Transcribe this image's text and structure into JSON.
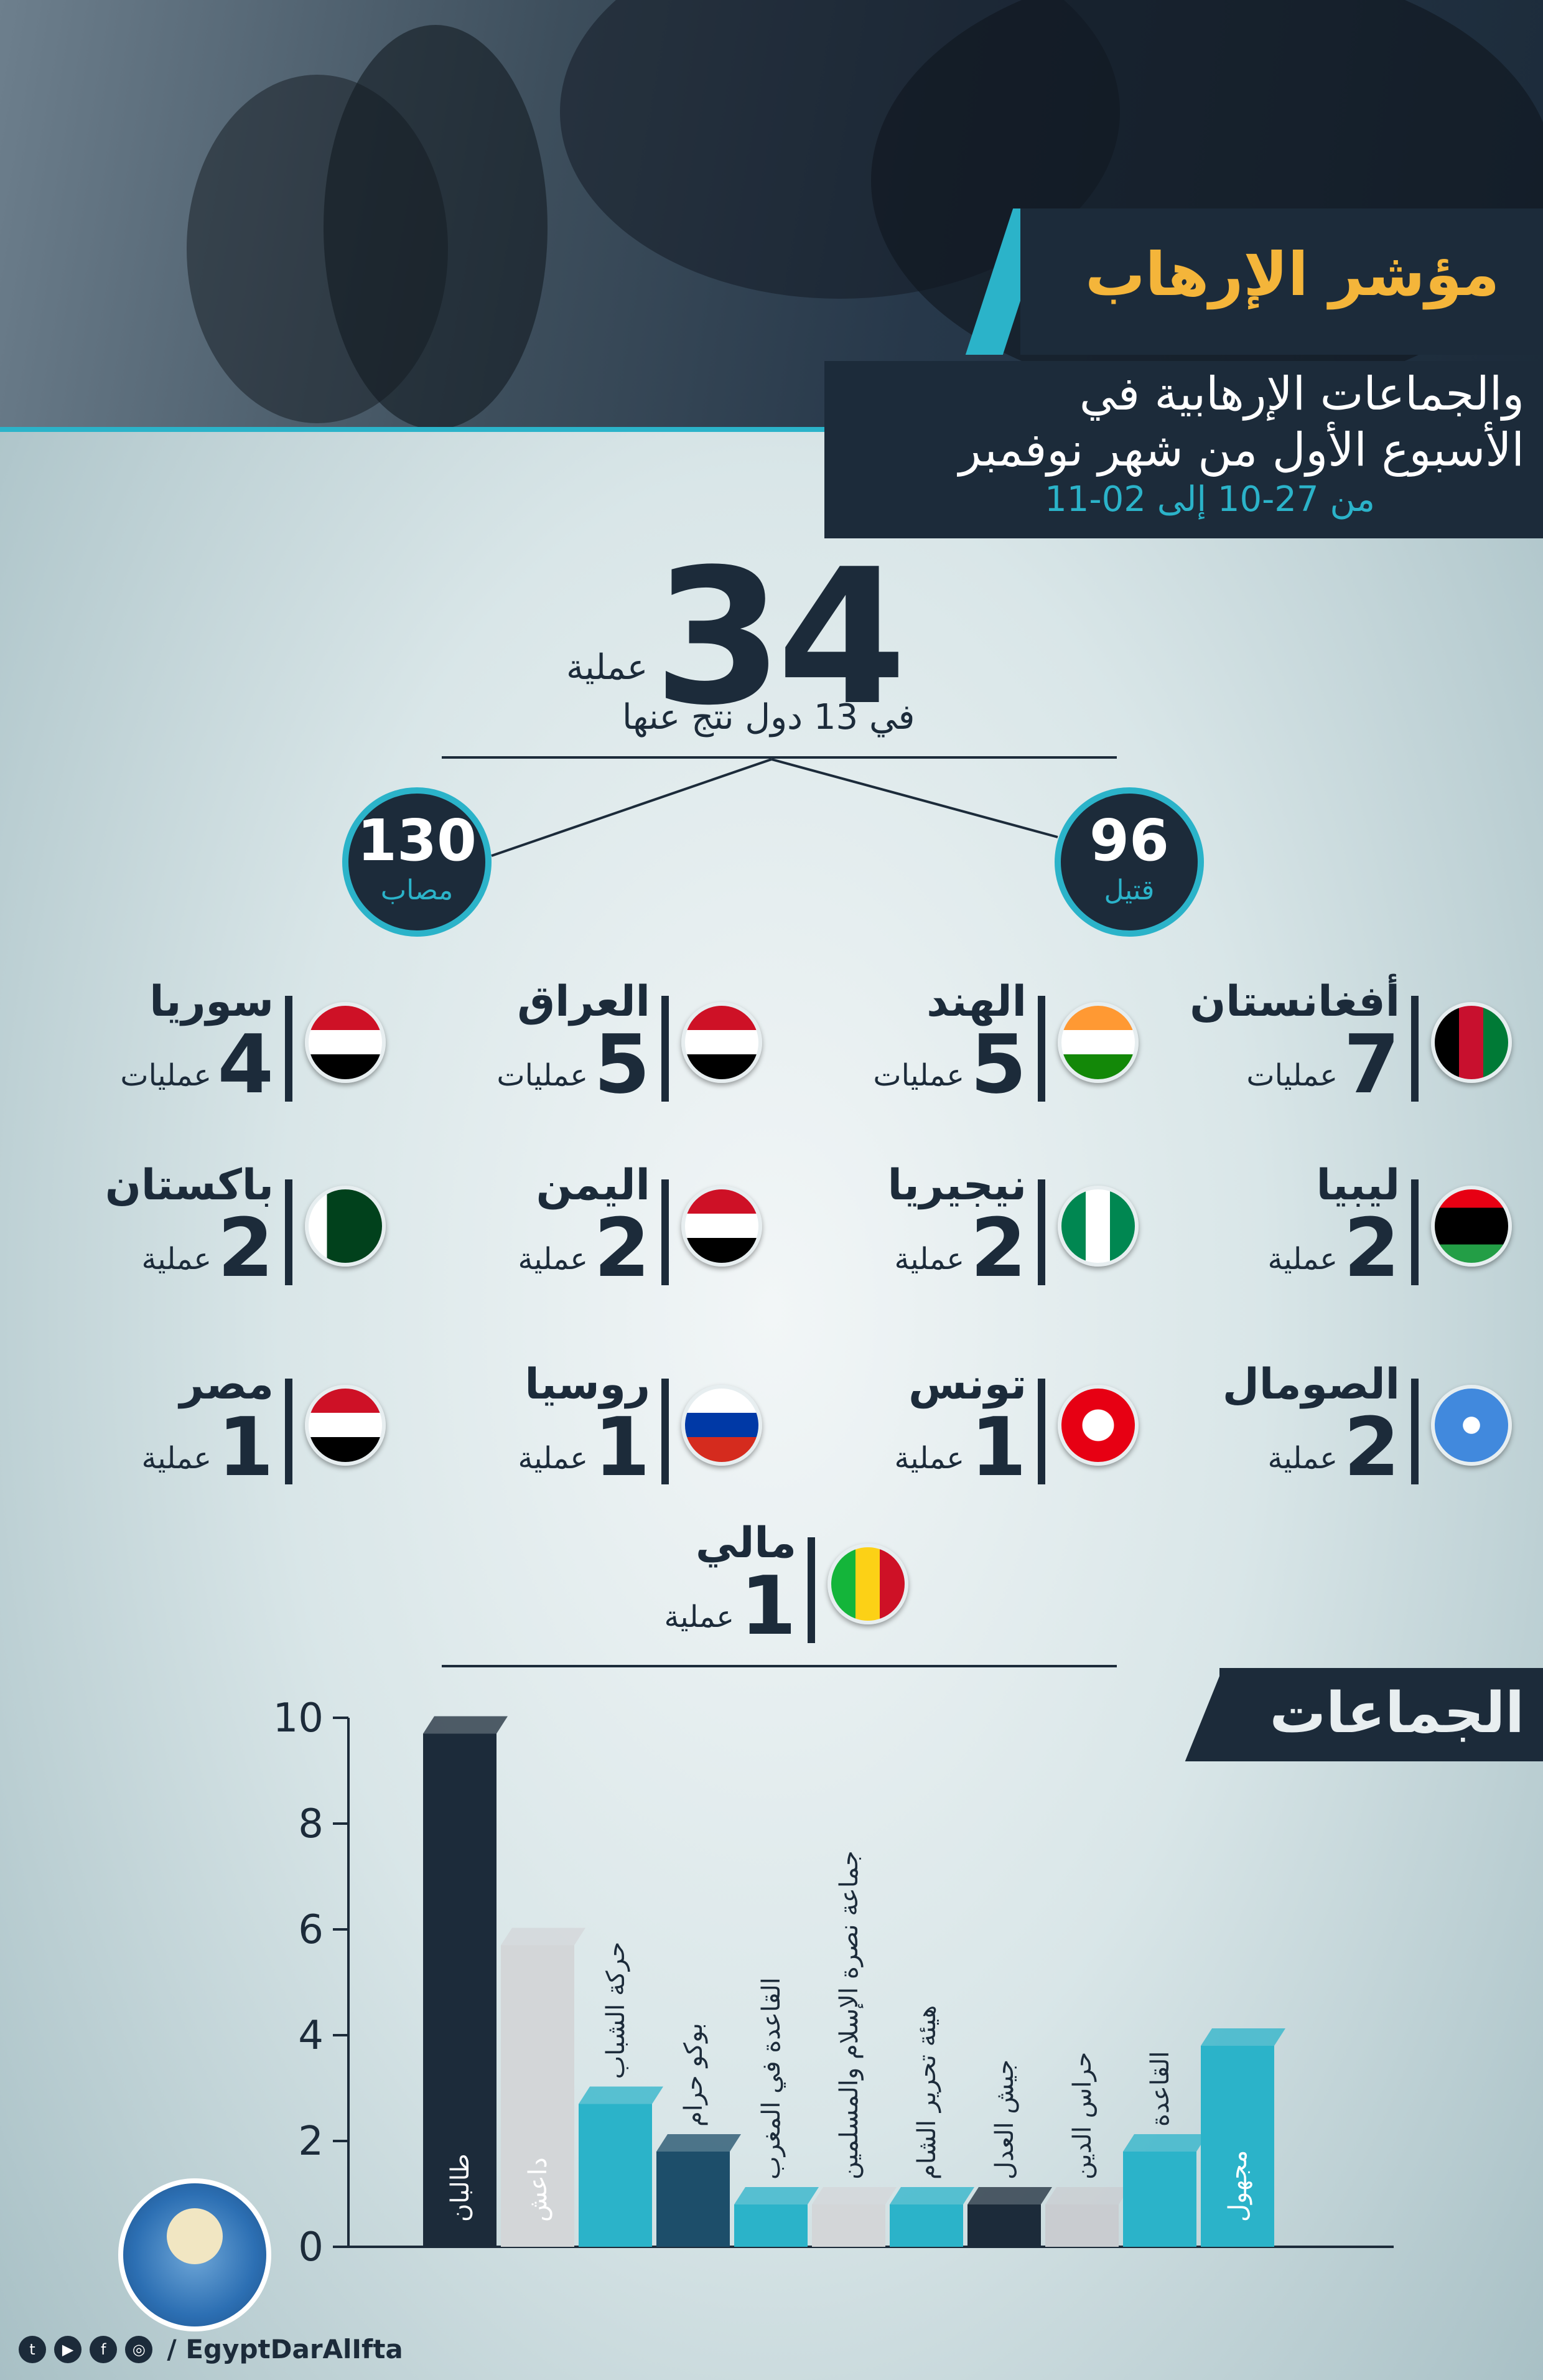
{
  "header": {
    "title": "مؤشر الإرهاب",
    "subtitle_line1": "والجماعات الإرهابية في",
    "subtitle_line2": "الأسبوع الأول من شهر نوفمبر",
    "date_range": "من 27-10 إلى 02-11"
  },
  "summary": {
    "operations_count": "34",
    "operations_word": "عملية",
    "countries_text": "في 13 دول نتج عنها",
    "killed": {
      "value": "96",
      "label": "قتيل"
    },
    "injured": {
      "value": "130",
      "label": "مصاب"
    }
  },
  "countries": [
    {
      "name": "أفغانستان",
      "count": "7",
      "unit": "عمليات",
      "flag": "afghanistan"
    },
    {
      "name": "الهند",
      "count": "5",
      "unit": "عمليات",
      "flag": "india"
    },
    {
      "name": "العراق",
      "count": "5",
      "unit": "عمليات",
      "flag": "iraq"
    },
    {
      "name": "سوريا",
      "count": "4",
      "unit": "عمليات",
      "flag": "syria"
    },
    {
      "name": "ليبيا",
      "count": "2",
      "unit": "عملية",
      "flag": "libya"
    },
    {
      "name": "نيجيريا",
      "count": "2",
      "unit": "عملية",
      "flag": "nigeria"
    },
    {
      "name": "اليمن",
      "count": "2",
      "unit": "عملية",
      "flag": "yemen"
    },
    {
      "name": "باكستان",
      "count": "2",
      "unit": "عملية",
      "flag": "pakistan"
    },
    {
      "name": "الصومال",
      "count": "2",
      "unit": "عملية",
      "flag": "somalia"
    },
    {
      "name": "تونس",
      "count": "1",
      "unit": "عملية",
      "flag": "tunisia"
    },
    {
      "name": "روسيا",
      "count": "1",
      "unit": "عملية",
      "flag": "russia"
    },
    {
      "name": "مصر",
      "count": "1",
      "unit": "عملية",
      "flag": "egypt"
    },
    {
      "name": "مالي",
      "count": "1",
      "unit": "عملية",
      "flag": "mali"
    }
  ],
  "groups_heading": "الجماعات",
  "chart_data": {
    "type": "bar",
    "categories": [
      "طالبان",
      "داعش",
      "حركة الشباب",
      "بوكو حرام",
      "القاعدة في المغرب",
      "جماعة نصرة الإسلام والمسلمين",
      "هيئة تحرير الشام",
      "جيش العدل",
      "حراس الدين",
      "القاعدة",
      "مجهول"
    ],
    "values": [
      9.7,
      5.7,
      2.7,
      1.8,
      0.8,
      0.8,
      0.8,
      0.8,
      0.8,
      1.8,
      3.8
    ],
    "colors": [
      "#1c2b3a",
      "#d3d6d8",
      "#2bb3c9",
      "#1d4e6a",
      "#2bb3c9",
      "#d3d6d8",
      "#2bb3c9",
      "#1c2b3a",
      "#c9ccd0",
      "#2bb3c9",
      "#2bb3c9"
    ],
    "ylim": [
      0,
      10
    ],
    "yticks": [
      "0",
      "2",
      "4",
      "6",
      "8",
      "10"
    ],
    "grid": false
  },
  "footer": {
    "handle": "/ EgyptDarAlIfta",
    "icons": [
      "twitter-icon",
      "youtube-icon",
      "facebook-icon",
      "instagram-icon"
    ]
  }
}
